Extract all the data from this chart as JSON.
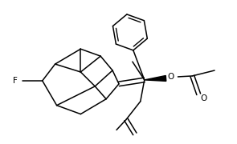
{
  "bg_color": "#ffffff",
  "line_color": "#000000",
  "lw": 1.1,
  "figsize": [
    2.95,
    1.8
  ],
  "dpi": 100,
  "xlim": [
    0,
    295
  ],
  "ylim": [
    0,
    180
  ]
}
